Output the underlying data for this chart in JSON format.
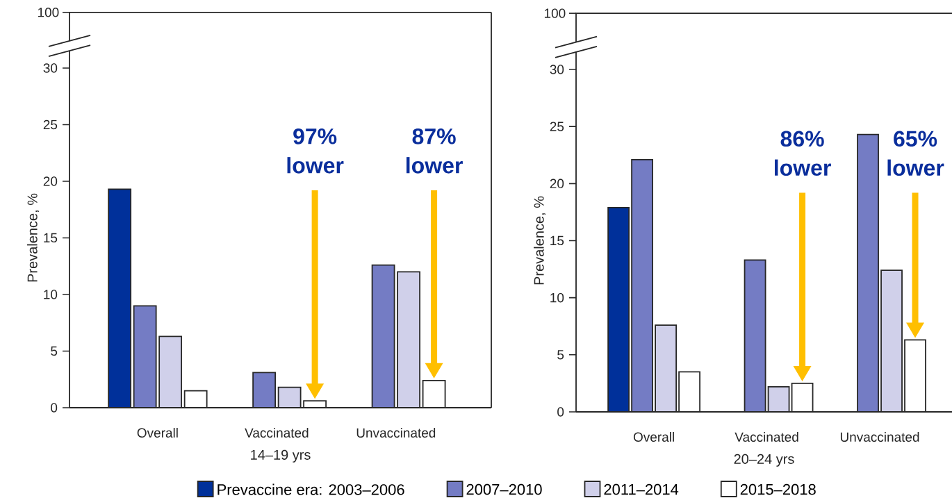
{
  "chart_data": [
    {
      "type": "bar",
      "xlabel": "14–19 yrs",
      "ylabel": "Prevalence, %",
      "categories": [
        "Overall",
        "Vaccinated",
        "Unvaccinated"
      ],
      "series": [
        {
          "name": "Prevaccine era: 2003–2006",
          "color": "#00309a",
          "values": [
            19.3,
            null,
            null
          ]
        },
        {
          "name": "2007–2010",
          "color": "#747cc4",
          "values": [
            9.0,
            3.1,
            12.6
          ]
        },
        {
          "name": "2011–2014",
          "color": "#d0d0ea",
          "values": [
            6.3,
            1.8,
            12.0
          ]
        },
        {
          "name": "2015–2018",
          "color": "#ffffff",
          "values": [
            1.5,
            0.6,
            2.4
          ]
        }
      ],
      "ylim": [
        0,
        30
      ],
      "yticks": [
        0,
        5,
        10,
        15,
        20,
        25,
        30
      ],
      "grid": false,
      "legend": "bottom",
      "annotations": [
        "100",
        "97% lower",
        "87% lower"
      ]
    },
    {
      "type": "bar",
      "xlabel": "20–24 yrs",
      "ylabel": "Prevalence, %",
      "categories": [
        "Overall",
        "Vaccinated",
        "Unvaccinated"
      ],
      "series": [
        {
          "color": "#00309a",
          "values": [
            17.9,
            null,
            null
          ]
        },
        {
          "color": "#747cc4",
          "values": [
            22.1,
            13.3,
            24.3
          ]
        },
        {
          "color": "#d0d0ea",
          "values": [
            7.6,
            2.2,
            12.4
          ]
        },
        {
          "color": "#ffffff",
          "values": [
            3.5,
            2.5,
            6.3
          ]
        }
      ],
      "ylim": [
        0,
        30
      ],
      "yticks": [
        0,
        5,
        10,
        15,
        20,
        25,
        30
      ],
      "grid": false,
      "annotations": [
        "100",
        "86% lower",
        "65% lower"
      ]
    }
  ]
}
